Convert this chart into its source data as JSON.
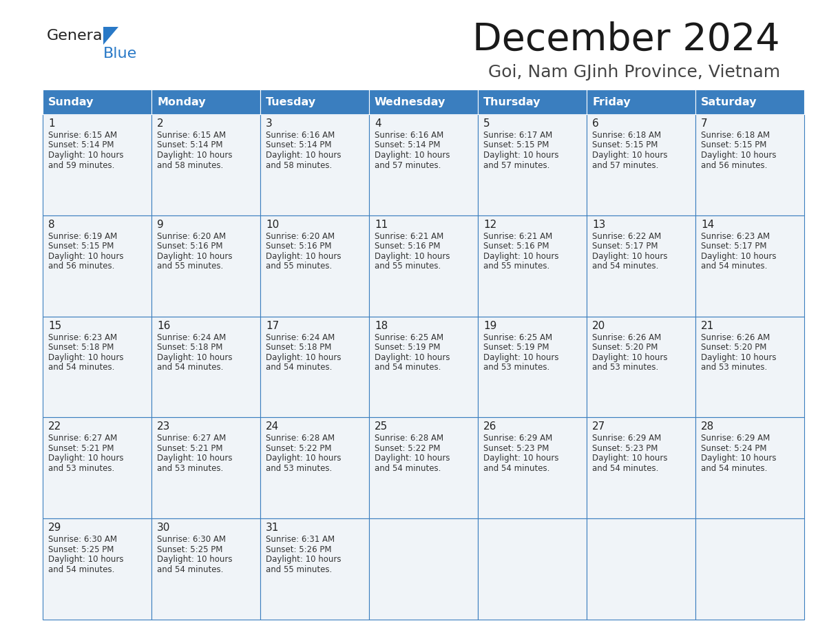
{
  "title": "December 2024",
  "subtitle": "Goi, Nam GJinh Province, Vietnam",
  "header_color": "#3a7ebf",
  "header_text_color": "#ffffff",
  "cell_bg_even": "#f0f4f8",
  "cell_bg_odd": "#e8eef5",
  "cell_text_color": "#333333",
  "border_color": "#3a7ebf",
  "days_of_week": [
    "Sunday",
    "Monday",
    "Tuesday",
    "Wednesday",
    "Thursday",
    "Friday",
    "Saturday"
  ],
  "calendar": [
    [
      {
        "day": "1",
        "sunrise": "6:15 AM",
        "sunset": "5:14 PM",
        "daylight": "10 hours\nand 59 minutes."
      },
      {
        "day": "2",
        "sunrise": "6:15 AM",
        "sunset": "5:14 PM",
        "daylight": "10 hours\nand 58 minutes."
      },
      {
        "day": "3",
        "sunrise": "6:16 AM",
        "sunset": "5:14 PM",
        "daylight": "10 hours\nand 58 minutes."
      },
      {
        "day": "4",
        "sunrise": "6:16 AM",
        "sunset": "5:14 PM",
        "daylight": "10 hours\nand 57 minutes."
      },
      {
        "day": "5",
        "sunrise": "6:17 AM",
        "sunset": "5:15 PM",
        "daylight": "10 hours\nand 57 minutes."
      },
      {
        "day": "6",
        "sunrise": "6:18 AM",
        "sunset": "5:15 PM",
        "daylight": "10 hours\nand 57 minutes."
      },
      {
        "day": "7",
        "sunrise": "6:18 AM",
        "sunset": "5:15 PM",
        "daylight": "10 hours\nand 56 minutes."
      }
    ],
    [
      {
        "day": "8",
        "sunrise": "6:19 AM",
        "sunset": "5:15 PM",
        "daylight": "10 hours\nand 56 minutes."
      },
      {
        "day": "9",
        "sunrise": "6:20 AM",
        "sunset": "5:16 PM",
        "daylight": "10 hours\nand 55 minutes."
      },
      {
        "day": "10",
        "sunrise": "6:20 AM",
        "sunset": "5:16 PM",
        "daylight": "10 hours\nand 55 minutes."
      },
      {
        "day": "11",
        "sunrise": "6:21 AM",
        "sunset": "5:16 PM",
        "daylight": "10 hours\nand 55 minutes."
      },
      {
        "day": "12",
        "sunrise": "6:21 AM",
        "sunset": "5:16 PM",
        "daylight": "10 hours\nand 55 minutes."
      },
      {
        "day": "13",
        "sunrise": "6:22 AM",
        "sunset": "5:17 PM",
        "daylight": "10 hours\nand 54 minutes."
      },
      {
        "day": "14",
        "sunrise": "6:23 AM",
        "sunset": "5:17 PM",
        "daylight": "10 hours\nand 54 minutes."
      }
    ],
    [
      {
        "day": "15",
        "sunrise": "6:23 AM",
        "sunset": "5:18 PM",
        "daylight": "10 hours\nand 54 minutes."
      },
      {
        "day": "16",
        "sunrise": "6:24 AM",
        "sunset": "5:18 PM",
        "daylight": "10 hours\nand 54 minutes."
      },
      {
        "day": "17",
        "sunrise": "6:24 AM",
        "sunset": "5:18 PM",
        "daylight": "10 hours\nand 54 minutes."
      },
      {
        "day": "18",
        "sunrise": "6:25 AM",
        "sunset": "5:19 PM",
        "daylight": "10 hours\nand 54 minutes."
      },
      {
        "day": "19",
        "sunrise": "6:25 AM",
        "sunset": "5:19 PM",
        "daylight": "10 hours\nand 53 minutes."
      },
      {
        "day": "20",
        "sunrise": "6:26 AM",
        "sunset": "5:20 PM",
        "daylight": "10 hours\nand 53 minutes."
      },
      {
        "day": "21",
        "sunrise": "6:26 AM",
        "sunset": "5:20 PM",
        "daylight": "10 hours\nand 53 minutes."
      }
    ],
    [
      {
        "day": "22",
        "sunrise": "6:27 AM",
        "sunset": "5:21 PM",
        "daylight": "10 hours\nand 53 minutes."
      },
      {
        "day": "23",
        "sunrise": "6:27 AM",
        "sunset": "5:21 PM",
        "daylight": "10 hours\nand 53 minutes."
      },
      {
        "day": "24",
        "sunrise": "6:28 AM",
        "sunset": "5:22 PM",
        "daylight": "10 hours\nand 53 minutes."
      },
      {
        "day": "25",
        "sunrise": "6:28 AM",
        "sunset": "5:22 PM",
        "daylight": "10 hours\nand 54 minutes."
      },
      {
        "day": "26",
        "sunrise": "6:29 AM",
        "sunset": "5:23 PM",
        "daylight": "10 hours\nand 54 minutes."
      },
      {
        "day": "27",
        "sunrise": "6:29 AM",
        "sunset": "5:23 PM",
        "daylight": "10 hours\nand 54 minutes."
      },
      {
        "day": "28",
        "sunrise": "6:29 AM",
        "sunset": "5:24 PM",
        "daylight": "10 hours\nand 54 minutes."
      }
    ],
    [
      {
        "day": "29",
        "sunrise": "6:30 AM",
        "sunset": "5:25 PM",
        "daylight": "10 hours\nand 54 minutes."
      },
      {
        "day": "30",
        "sunrise": "6:30 AM",
        "sunset": "5:25 PM",
        "daylight": "10 hours\nand 54 minutes."
      },
      {
        "day": "31",
        "sunrise": "6:31 AM",
        "sunset": "5:26 PM",
        "daylight": "10 hours\nand 55 minutes."
      },
      null,
      null,
      null,
      null
    ]
  ]
}
